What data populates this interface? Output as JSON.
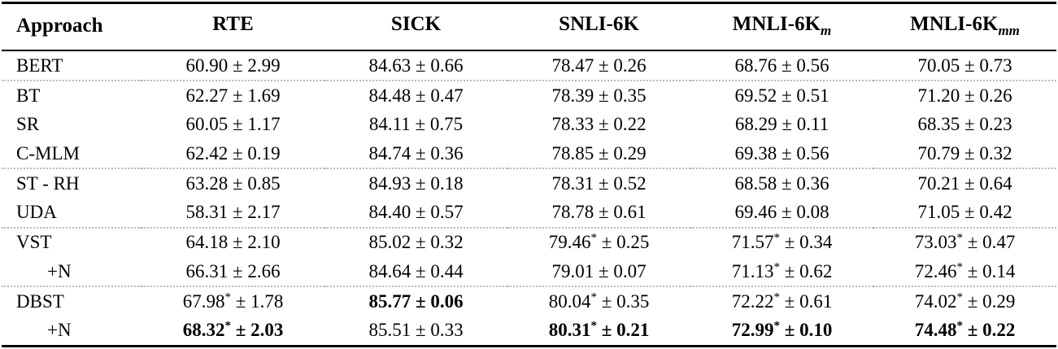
{
  "table": {
    "columns": [
      {
        "label": "Approach",
        "sub": ""
      },
      {
        "label": "RTE",
        "sub": ""
      },
      {
        "label": "SICK",
        "sub": ""
      },
      {
        "label": "SNLI-6K",
        "sub": ""
      },
      {
        "label": "MNLI-6K",
        "sub": "m"
      },
      {
        "label": "MNLI-6K",
        "sub": "mm"
      }
    ],
    "plus_minus": "±",
    "star_symbol": "*",
    "rows": [
      {
        "approach": "BERT",
        "indent": false,
        "sep": false,
        "cells": [
          {
            "mean": "60.90",
            "star": false,
            "std": "2.99",
            "bold": false
          },
          {
            "mean": "84.63",
            "star": false,
            "std": "0.66",
            "bold": false
          },
          {
            "mean": "78.47",
            "star": false,
            "std": "0.26",
            "bold": false
          },
          {
            "mean": "68.76",
            "star": false,
            "std": "0.56",
            "bold": false
          },
          {
            "mean": "70.05",
            "star": false,
            "std": "0.73",
            "bold": false
          }
        ]
      },
      {
        "approach": "BT",
        "indent": false,
        "sep": true,
        "cells": [
          {
            "mean": "62.27",
            "star": false,
            "std": "1.69",
            "bold": false
          },
          {
            "mean": "84.48",
            "star": false,
            "std": "0.47",
            "bold": false
          },
          {
            "mean": "78.39",
            "star": false,
            "std": "0.35",
            "bold": false
          },
          {
            "mean": "69.52",
            "star": false,
            "std": "0.51",
            "bold": false
          },
          {
            "mean": "71.20",
            "star": false,
            "std": "0.26",
            "bold": false
          }
        ]
      },
      {
        "approach": "SR",
        "indent": false,
        "sep": false,
        "cells": [
          {
            "mean": "60.05",
            "star": false,
            "std": "1.17",
            "bold": false
          },
          {
            "mean": "84.11",
            "star": false,
            "std": "0.75",
            "bold": false
          },
          {
            "mean": "78.33",
            "star": false,
            "std": "0.22",
            "bold": false
          },
          {
            "mean": "68.29",
            "star": false,
            "std": "0.11",
            "bold": false
          },
          {
            "mean": "68.35",
            "star": false,
            "std": "0.23",
            "bold": false
          }
        ]
      },
      {
        "approach": "C-MLM",
        "indent": false,
        "sep": false,
        "cells": [
          {
            "mean": "62.42",
            "star": false,
            "std": "0.19",
            "bold": false
          },
          {
            "mean": "84.74",
            "star": false,
            "std": "0.36",
            "bold": false
          },
          {
            "mean": "78.85",
            "star": false,
            "std": "0.29",
            "bold": false
          },
          {
            "mean": "69.38",
            "star": false,
            "std": "0.56",
            "bold": false
          },
          {
            "mean": "70.79",
            "star": false,
            "std": "0.32",
            "bold": false
          }
        ]
      },
      {
        "approach": "ST - RH",
        "indent": false,
        "sep": true,
        "cells": [
          {
            "mean": "63.28",
            "star": false,
            "std": "0.85",
            "bold": false
          },
          {
            "mean": "84.93",
            "star": false,
            "std": "0.18",
            "bold": false
          },
          {
            "mean": "78.31",
            "star": false,
            "std": "0.52",
            "bold": false
          },
          {
            "mean": "68.58",
            "star": false,
            "std": "0.36",
            "bold": false
          },
          {
            "mean": "70.21",
            "star": false,
            "std": "0.64",
            "bold": false
          }
        ]
      },
      {
        "approach": "UDA",
        "indent": false,
        "sep": false,
        "cells": [
          {
            "mean": "58.31",
            "star": false,
            "std": "2.17",
            "bold": false
          },
          {
            "mean": "84.40",
            "star": false,
            "std": "0.57",
            "bold": false
          },
          {
            "mean": "78.78",
            "star": false,
            "std": "0.61",
            "bold": false
          },
          {
            "mean": "69.46",
            "star": false,
            "std": "0.08",
            "bold": false
          },
          {
            "mean": "71.05",
            "star": false,
            "std": "0.42",
            "bold": false
          }
        ]
      },
      {
        "approach": "VST",
        "indent": false,
        "sep": true,
        "cells": [
          {
            "mean": "64.18",
            "star": false,
            "std": "2.10",
            "bold": false
          },
          {
            "mean": "85.02",
            "star": false,
            "std": "0.32",
            "bold": false
          },
          {
            "mean": "79.46",
            "star": true,
            "std": "0.25",
            "bold": false
          },
          {
            "mean": "71.57",
            "star": true,
            "std": "0.34",
            "bold": false
          },
          {
            "mean": "73.03",
            "star": true,
            "std": "0.47",
            "bold": false
          }
        ]
      },
      {
        "approach": "+N",
        "indent": true,
        "sep": false,
        "cells": [
          {
            "mean": "66.31",
            "star": false,
            "std": "2.66",
            "bold": false
          },
          {
            "mean": "84.64",
            "star": false,
            "std": "0.44",
            "bold": false
          },
          {
            "mean": "79.01",
            "star": false,
            "std": "0.07",
            "bold": false
          },
          {
            "mean": "71.13",
            "star": true,
            "std": "0.62",
            "bold": false
          },
          {
            "mean": "72.46",
            "star": true,
            "std": "0.14",
            "bold": false
          }
        ]
      },
      {
        "approach": "DBST",
        "indent": false,
        "sep": true,
        "cells": [
          {
            "mean": "67.98",
            "star": true,
            "std": "1.78",
            "bold": false
          },
          {
            "mean": "85.77",
            "star": false,
            "std": "0.06",
            "bold": true
          },
          {
            "mean": "80.04",
            "star": true,
            "std": "0.35",
            "bold": false
          },
          {
            "mean": "72.22",
            "star": true,
            "std": "0.61",
            "bold": false
          },
          {
            "mean": "74.02",
            "star": true,
            "std": "0.29",
            "bold": false
          }
        ]
      },
      {
        "approach": "+N",
        "indent": true,
        "sep": false,
        "cells": [
          {
            "mean": "68.32",
            "star": true,
            "std": "2.03",
            "bold": true
          },
          {
            "mean": "85.51",
            "star": false,
            "std": "0.33",
            "bold": false
          },
          {
            "mean": "80.31",
            "star": true,
            "std": "0.21",
            "bold": true
          },
          {
            "mean": "72.99",
            "star": true,
            "std": "0.10",
            "bold": true
          },
          {
            "mean": "74.48",
            "star": true,
            "std": "0.22",
            "bold": true
          }
        ]
      }
    ]
  }
}
